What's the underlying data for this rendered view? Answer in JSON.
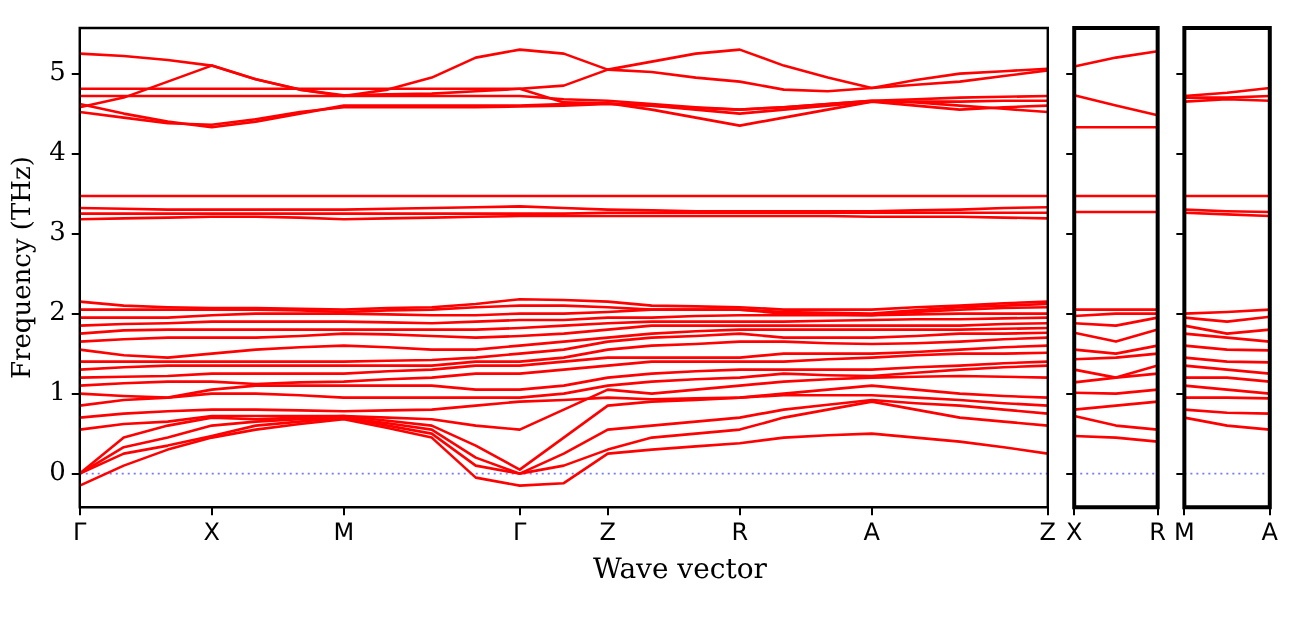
{
  "chart_data": [
    {
      "type": "line",
      "ylabel": "Frequency (THz)",
      "xlabel": "Wave vector",
      "marker": "none",
      "ylim": [
        -0.42,
        5.57
      ],
      "yticks": [
        0,
        1,
        2,
        3,
        4,
        5
      ],
      "categories": [
        "Γ",
        null,
        null,
        "X",
        null,
        null,
        "M",
        null,
        null,
        null,
        "Γ",
        null,
        "Z",
        null,
        null,
        "R",
        null,
        null,
        "A",
        null,
        null,
        null,
        "Z"
      ],
      "ref_lines": [
        {
          "axis": "y",
          "value": 0,
          "color": "#7777ff",
          "line_style": "dotted"
        }
      ],
      "series": [
        {
          "color": "#ff0000",
          "values": [
            5.25,
            5.22,
            5.17,
            5.1,
            4.93,
            4.8,
            4.72,
            4.8,
            4.95,
            5.2,
            5.3,
            5.25,
            5.05,
            5.15,
            5.25,
            5.3,
            5.1,
            4.95,
            4.82,
            4.92,
            5.0,
            5.03,
            5.06
          ]
        },
        {
          "color": "#ff0000",
          "values": [
            4.58,
            4.7,
            4.9,
            5.1,
            4.93,
            4.8,
            4.73,
            4.74,
            4.75,
            4.78,
            4.81,
            4.85,
            5.05,
            5.02,
            4.95,
            4.9,
            4.8,
            4.78,
            4.82,
            4.86,
            4.9,
            4.97,
            5.04
          ]
        },
        {
          "color": "#ff0000",
          "values": [
            4.81,
            4.81,
            4.81,
            4.81,
            4.81,
            4.81,
            4.81,
            4.81,
            4.81,
            4.81,
            4.81,
            4.64,
            4.63,
            4.6,
            4.55,
            4.5,
            4.55,
            4.6,
            4.65,
            4.65,
            4.65,
            4.66,
            4.66
          ]
        },
        {
          "color": "#ff0000",
          "values": [
            4.72,
            4.72,
            4.72,
            4.72,
            4.72,
            4.72,
            4.72,
            4.72,
            4.72,
            4.72,
            4.72,
            4.68,
            4.66,
            4.62,
            4.58,
            4.55,
            4.58,
            4.62,
            4.66,
            4.68,
            4.7,
            4.71,
            4.72
          ]
        },
        {
          "color": "#ff0000",
          "values": [
            4.62,
            4.5,
            4.4,
            4.33,
            4.4,
            4.5,
            4.6,
            4.6,
            4.6,
            4.6,
            4.6,
            4.62,
            4.63,
            4.55,
            4.45,
            4.35,
            4.45,
            4.55,
            4.65,
            4.6,
            4.55,
            4.58,
            4.6
          ]
        },
        {
          "color": "#ff0000",
          "values": [
            4.52,
            4.45,
            4.38,
            4.36,
            4.43,
            4.52,
            4.58,
            4.58,
            4.58,
            4.58,
            4.59,
            4.6,
            4.62,
            4.6,
            4.57,
            4.55,
            4.58,
            4.62,
            4.66,
            4.64,
            4.6,
            4.56,
            4.52
          ]
        },
        {
          "color": "#ff0000",
          "values": [
            3.47,
            3.47,
            3.47,
            3.47,
            3.47,
            3.47,
            3.47,
            3.47,
            3.47,
            3.47,
            3.47,
            3.47,
            3.47,
            3.47,
            3.47,
            3.47,
            3.47,
            3.47,
            3.47,
            3.47,
            3.47,
            3.47,
            3.47
          ]
        },
        {
          "color": "#ff0000",
          "values": [
            3.32,
            3.31,
            3.3,
            3.3,
            3.3,
            3.3,
            3.3,
            3.31,
            3.32,
            3.33,
            3.34,
            3.32,
            3.3,
            3.29,
            3.28,
            3.28,
            3.28,
            3.28,
            3.28,
            3.29,
            3.3,
            3.32,
            3.33
          ]
        },
        {
          "color": "#ff0000",
          "values": [
            3.25,
            3.25,
            3.25,
            3.25,
            3.25,
            3.25,
            3.25,
            3.25,
            3.25,
            3.25,
            3.25,
            3.25,
            3.26,
            3.26,
            3.26,
            3.26,
            3.26,
            3.26,
            3.26,
            3.26,
            3.26,
            3.26,
            3.26
          ]
        },
        {
          "color": "#ff0000",
          "values": [
            3.18,
            3.19,
            3.2,
            3.21,
            3.21,
            3.2,
            3.18,
            3.19,
            3.2,
            3.21,
            3.22,
            3.22,
            3.22,
            3.22,
            3.22,
            3.22,
            3.22,
            3.22,
            3.21,
            3.21,
            3.21,
            3.2,
            3.19
          ]
        },
        {
          "color": "#ff0000",
          "values": [
            2.15,
            2.1,
            2.08,
            2.07,
            2.07,
            2.06,
            2.05,
            2.07,
            2.08,
            2.12,
            2.18,
            2.17,
            2.15,
            2.1,
            2.09,
            2.08,
            2.05,
            2.05,
            2.05,
            2.08,
            2.1,
            2.13,
            2.15
          ]
        },
        {
          "color": "#ff0000",
          "values": [
            2.05,
            2.05,
            2.05,
            2.05,
            2.05,
            2.04,
            2.02,
            2.04,
            2.05,
            2.08,
            2.1,
            2.1,
            2.08,
            2.05,
            2.05,
            2.05,
            2.02,
            2.01,
            2.0,
            2.04,
            2.08,
            2.1,
            2.12
          ]
        },
        {
          "color": "#ff0000",
          "values": [
            1.95,
            1.95,
            1.95,
            1.98,
            2.0,
            2.0,
            2.0,
            1.99,
            1.98,
            1.98,
            2.0,
            2.0,
            2.02,
            2.05,
            2.05,
            2.05,
            2.0,
            1.99,
            1.98,
            2.02,
            2.05,
            2.07,
            2.08
          ]
        },
        {
          "color": "#ff0000",
          "values": [
            1.85,
            1.87,
            1.88,
            1.9,
            1.9,
            1.9,
            1.9,
            1.89,
            1.88,
            1.9,
            1.92,
            1.92,
            1.95,
            1.95,
            1.97,
            1.98,
            1.98,
            1.98,
            1.98,
            1.99,
            2.0,
            2.0,
            2.0
          ]
        },
        {
          "color": "#ff0000",
          "values": [
            1.75,
            1.79,
            1.8,
            1.8,
            1.8,
            1.8,
            1.8,
            1.8,
            1.8,
            1.8,
            1.82,
            1.85,
            1.88,
            1.9,
            1.9,
            1.9,
            1.9,
            1.91,
            1.92,
            1.93,
            1.93,
            1.94,
            1.95
          ]
        },
        {
          "color": "#ff0000",
          "values": [
            1.65,
            1.68,
            1.7,
            1.7,
            1.7,
            1.72,
            1.75,
            1.74,
            1.72,
            1.7,
            1.72,
            1.75,
            1.8,
            1.85,
            1.85,
            1.85,
            1.85,
            1.85,
            1.85,
            1.85,
            1.85,
            1.87,
            1.88
          ]
        },
        {
          "color": "#ff0000",
          "values": [
            1.55,
            1.48,
            1.45,
            1.5,
            1.55,
            1.58,
            1.6,
            1.58,
            1.55,
            1.55,
            1.6,
            1.65,
            1.7,
            1.75,
            1.78,
            1.8,
            1.8,
            1.8,
            1.8,
            1.8,
            1.8,
            1.81,
            1.82
          ]
        },
        {
          "color": "#ff0000",
          "values": [
            1.4,
            1.4,
            1.4,
            1.4,
            1.4,
            1.4,
            1.4,
            1.41,
            1.42,
            1.45,
            1.5,
            1.55,
            1.65,
            1.7,
            1.72,
            1.75,
            1.7,
            1.7,
            1.7,
            1.72,
            1.75,
            1.75,
            1.76
          ]
        },
        {
          "color": "#ff0000",
          "values": [
            1.3,
            1.33,
            1.35,
            1.35,
            1.35,
            1.35,
            1.35,
            1.35,
            1.35,
            1.4,
            1.4,
            1.45,
            1.55,
            1.6,
            1.62,
            1.65,
            1.65,
            1.63,
            1.62,
            1.63,
            1.65,
            1.68,
            1.7
          ]
        },
        {
          "color": "#ff0000",
          "values": [
            1.2,
            1.21,
            1.22,
            1.25,
            1.25,
            1.25,
            1.25,
            1.28,
            1.3,
            1.35,
            1.35,
            1.4,
            1.45,
            1.45,
            1.45,
            1.45,
            1.5,
            1.5,
            1.5,
            1.52,
            1.55,
            1.58,
            1.6
          ]
        },
        {
          "color": "#ff0000",
          "values": [
            1.1,
            1.13,
            1.15,
            1.15,
            1.12,
            1.14,
            1.15,
            1.18,
            1.2,
            1.25,
            1.25,
            1.3,
            1.35,
            1.4,
            1.4,
            1.4,
            1.4,
            1.43,
            1.45,
            1.48,
            1.5,
            1.5,
            1.51
          ]
        },
        {
          "color": "#ff0000",
          "values": [
            1.0,
            0.97,
            0.95,
            1.05,
            1.1,
            1.1,
            1.1,
            1.1,
            1.1,
            1.05,
            1.05,
            1.1,
            1.2,
            1.25,
            1.28,
            1.3,
            1.3,
            1.3,
            1.3,
            1.33,
            1.35,
            1.38,
            1.4
          ]
        },
        {
          "color": "#ff0000",
          "values": [
            0.85,
            0.92,
            0.95,
            1.0,
            1.0,
            0.98,
            0.95,
            0.95,
            0.95,
            0.95,
            0.95,
            1.0,
            1.1,
            1.15,
            1.18,
            1.2,
            1.25,
            1.23,
            1.22,
            1.26,
            1.3,
            1.33,
            1.35
          ]
        },
        {
          "color": "#ff0000",
          "values": [
            0.7,
            0.75,
            0.78,
            0.8,
            0.8,
            0.79,
            0.78,
            0.79,
            0.8,
            0.85,
            0.9,
            0.92,
            0.95,
            0.93,
            0.94,
            0.95,
            0.98,
            0.98,
            0.98,
            0.95,
            0.92,
            0.88,
            0.85
          ]
        },
        {
          "color": "#ff0000",
          "values": [
            0.55,
            0.62,
            0.65,
            0.72,
            0.72,
            0.72,
            0.72,
            0.7,
            0.68,
            0.6,
            0.55,
            0.8,
            1.05,
            1.0,
            1.05,
            1.1,
            1.15,
            1.18,
            1.2,
            1.21,
            1.22,
            1.21,
            1.2
          ]
        },
        {
          "color": "#ff0000",
          "values": [
            0,
            0.45,
            0.6,
            0.7,
            0.68,
            0.7,
            0.72,
            0.66,
            0.6,
            0.35,
            0.05,
            0.45,
            0.85,
            0.9,
            0.92,
            0.95,
            1.0,
            1.05,
            1.1,
            1.05,
            1.0,
            0.97,
            0.95
          ]
        },
        {
          "color": "#ff0000",
          "values": [
            0,
            0.33,
            0.45,
            0.6,
            0.65,
            0.68,
            0.7,
            0.63,
            0.55,
            0.2,
            0,
            0.25,
            0.55,
            0.6,
            0.65,
            0.7,
            0.8,
            0.86,
            0.92,
            0.88,
            0.85,
            0.8,
            0.75
          ]
        },
        {
          "color": "#ff0000",
          "values": [
            0,
            0.25,
            0.35,
            0.47,
            0.6,
            0.65,
            0.7,
            0.6,
            0.5,
            0.1,
            0,
            0.1,
            0.3,
            0.45,
            0.5,
            0.55,
            0.7,
            0.8,
            0.9,
            0.8,
            0.7,
            0.65,
            0.6
          ]
        },
        {
          "color": "#ff0000",
          "values": [
            -0.15,
            0.1,
            0.3,
            0.45,
            0.55,
            0.62,
            0.68,
            0.57,
            0.45,
            -0.05,
            -0.15,
            -0.12,
            0.25,
            0.3,
            0.34,
            0.38,
            0.45,
            0.48,
            0.5,
            0.45,
            0.4,
            0.33,
            0.25
          ]
        }
      ]
    },
    {
      "type": "line",
      "marker": "none",
      "tick_labels": "x",
      "ylim": [
        -0.42,
        5.57
      ],
      "yticks": [
        0,
        1,
        2,
        3,
        4,
        5
      ],
      "categories": [
        "X",
        null,
        "R"
      ],
      "ref_lines": [
        {
          "axis": "y",
          "value": 0,
          "color": "#7777ff",
          "line_style": "dotted"
        }
      ],
      "series": [
        {
          "color": "#ff0000",
          "values": [
            5.09,
            5.2,
            5.28
          ]
        },
        {
          "color": "#ff0000",
          "values": [
            4.73,
            4.6,
            4.48
          ]
        },
        {
          "color": "#ff0000",
          "values": [
            4.33,
            4.33,
            4.33
          ]
        },
        {
          "color": "#ff0000",
          "values": [
            3.47,
            3.47,
            3.47
          ]
        },
        {
          "color": "#ff0000",
          "values": [
            3.27,
            3.27,
            3.27
          ]
        },
        {
          "color": "#ff0000",
          "values": [
            2.05,
            2.05,
            2.05
          ]
        },
        {
          "color": "#ff0000",
          "values": [
            1.97,
            2.0,
            2.0
          ]
        },
        {
          "color": "#ff0000",
          "values": [
            1.88,
            1.85,
            1.95
          ]
        },
        {
          "color": "#ff0000",
          "values": [
            1.76,
            1.65,
            1.8
          ]
        },
        {
          "color": "#ff0000",
          "values": [
            1.55,
            1.5,
            1.6
          ]
        },
        {
          "color": "#ff0000",
          "values": [
            1.43,
            1.45,
            1.5
          ]
        },
        {
          "color": "#ff0000",
          "values": [
            1.3,
            1.2,
            1.35
          ]
        },
        {
          "color": "#ff0000",
          "values": [
            1.14,
            1.2,
            1.25
          ]
        },
        {
          "color": "#ff0000",
          "values": [
            1.01,
            1.0,
            1.05
          ]
        },
        {
          "color": "#ff0000",
          "values": [
            0.8,
            0.85,
            0.9
          ]
        },
        {
          "color": "#ff0000",
          "values": [
            0.72,
            0.6,
            0.55
          ]
        },
        {
          "color": "#ff0000",
          "values": [
            0.47,
            0.45,
            0.4
          ]
        }
      ]
    },
    {
      "type": "line",
      "marker": "none",
      "tick_labels": "x",
      "ylim": [
        -0.42,
        5.57
      ],
      "yticks": [
        0,
        1,
        2,
        3,
        4,
        5
      ],
      "categories": [
        "M",
        null,
        "A"
      ],
      "ref_lines": [
        {
          "axis": "y",
          "value": 0,
          "color": "#7777ff",
          "line_style": "dotted"
        }
      ],
      "series": [
        {
          "color": "#ff0000",
          "values": [
            4.72,
            4.76,
            4.82
          ]
        },
        {
          "color": "#ff0000",
          "values": [
            4.7,
            4.7,
            4.72
          ]
        },
        {
          "color": "#ff0000",
          "values": [
            4.65,
            4.68,
            4.66
          ]
        },
        {
          "color": "#ff0000",
          "values": [
            3.47,
            3.47,
            3.47
          ]
        },
        {
          "color": "#ff0000",
          "values": [
            3.3,
            3.28,
            3.27
          ]
        },
        {
          "color": "#ff0000",
          "values": [
            3.26,
            3.24,
            3.22
          ]
        },
        {
          "color": "#ff0000",
          "values": [
            2.0,
            2.02,
            2.05
          ]
        },
        {
          "color": "#ff0000",
          "values": [
            1.95,
            1.9,
            1.96
          ]
        },
        {
          "color": "#ff0000",
          "values": [
            1.85,
            1.75,
            1.8
          ]
        },
        {
          "color": "#ff0000",
          "values": [
            1.75,
            1.7,
            1.65
          ]
        },
        {
          "color": "#ff0000",
          "values": [
            1.6,
            1.55,
            1.54
          ]
        },
        {
          "color": "#ff0000",
          "values": [
            1.45,
            1.4,
            1.39
          ]
        },
        {
          "color": "#ff0000",
          "values": [
            1.35,
            1.3,
            1.25
          ]
        },
        {
          "color": "#ff0000",
          "values": [
            1.2,
            1.2,
            1.15
          ]
        },
        {
          "color": "#ff0000",
          "values": [
            1.1,
            1.05,
            1.0
          ]
        },
        {
          "color": "#ff0000",
          "values": [
            0.95,
            0.95,
            0.94
          ]
        },
        {
          "color": "#ff0000",
          "values": [
            0.8,
            0.76,
            0.75
          ]
        },
        {
          "color": "#ff0000",
          "values": [
            0.7,
            0.6,
            0.55
          ]
        }
      ]
    }
  ]
}
